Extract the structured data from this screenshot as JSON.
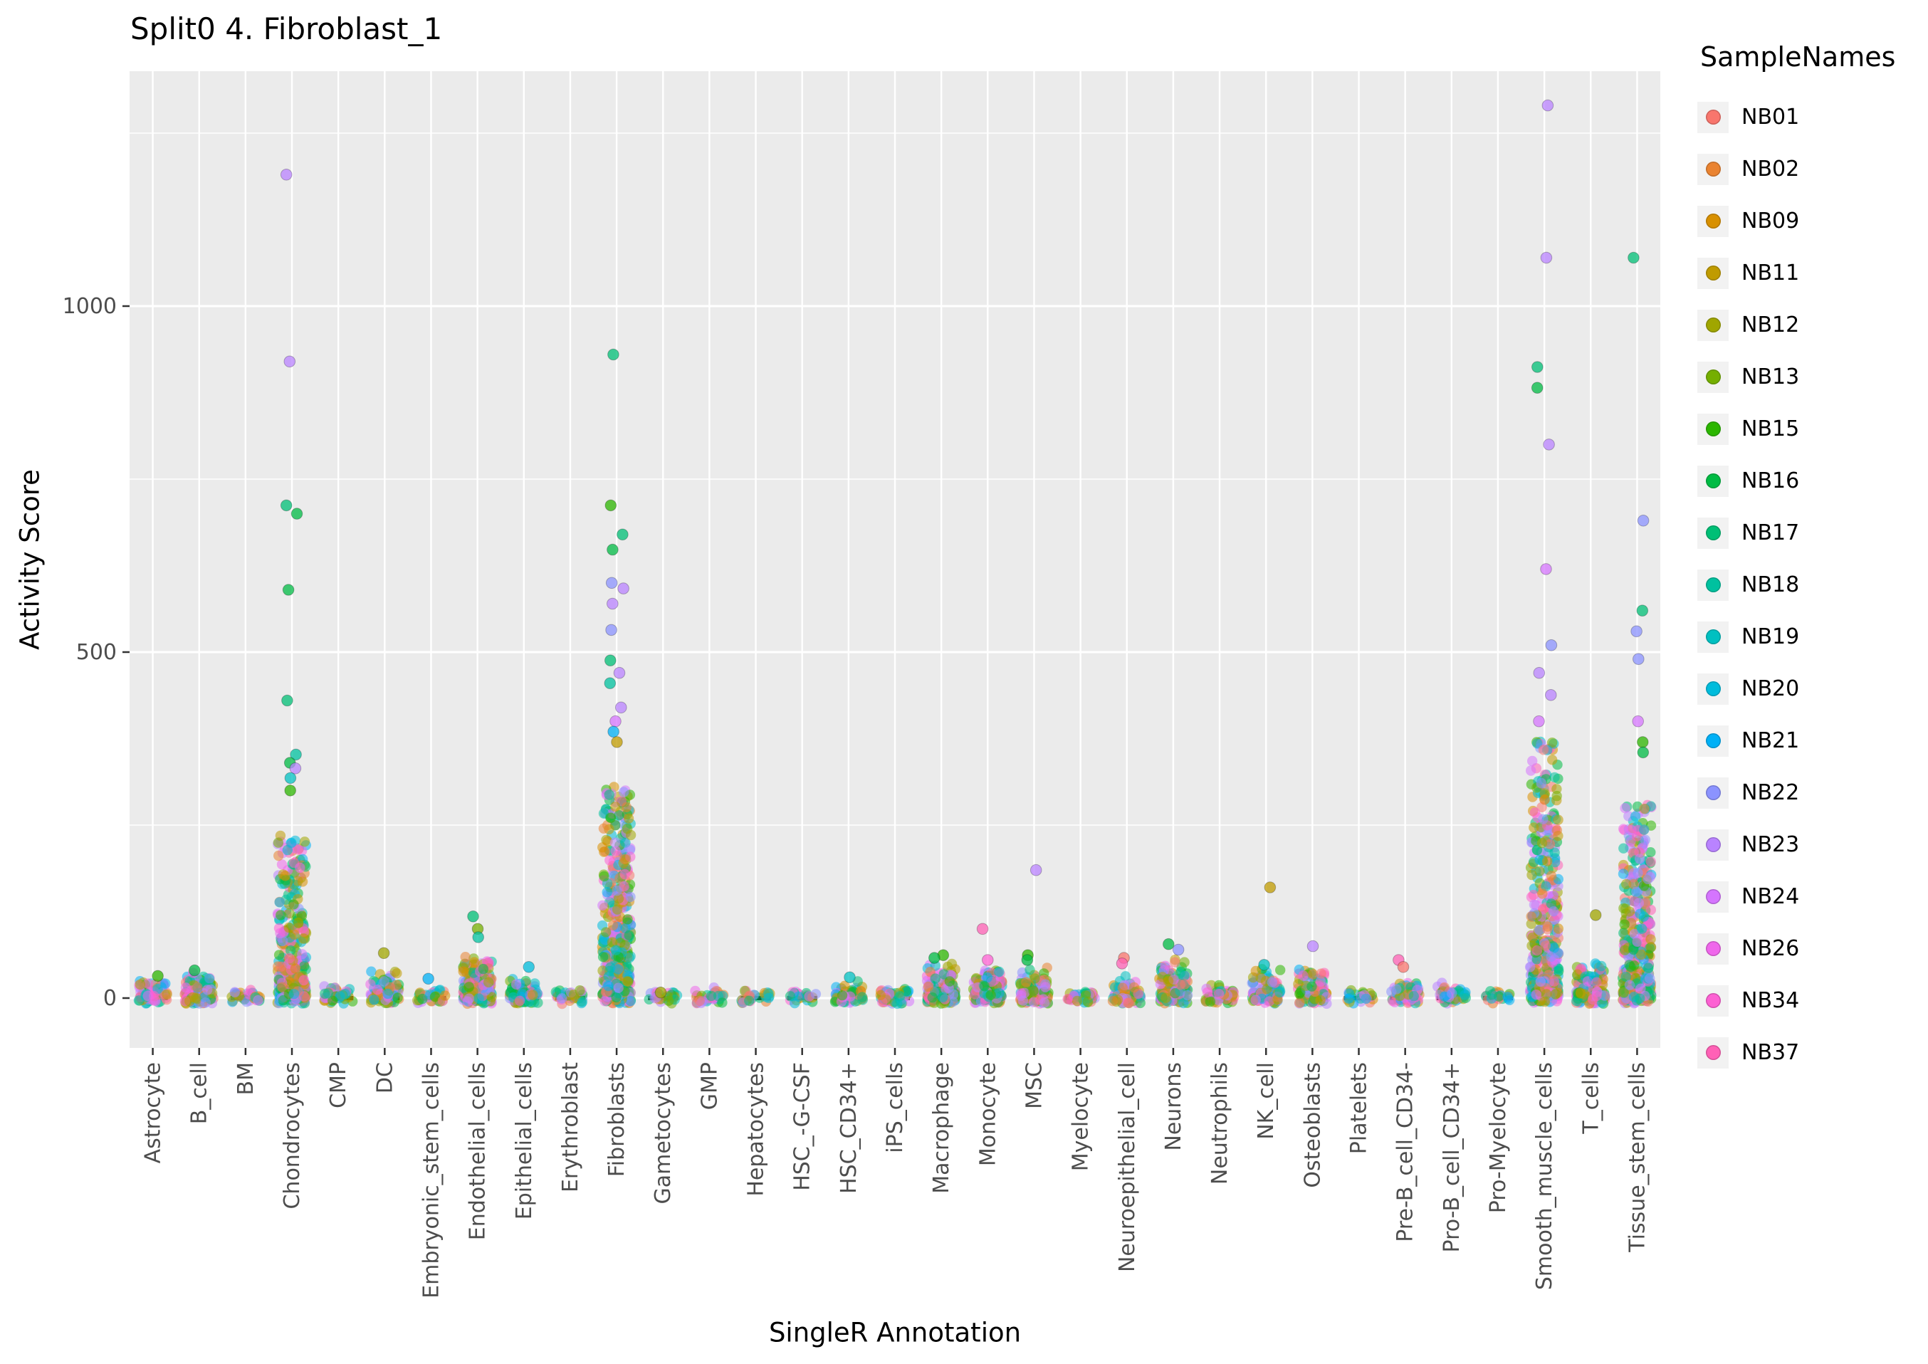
{
  "chart_data": {
    "type": "scatter",
    "title": "Split0 4. Fibroblast_1",
    "xlabel": "SingleR Annotation",
    "ylabel": "Activity Score",
    "ylim": [
      -70,
      1340
    ],
    "yticks": [
      0,
      500,
      1000
    ],
    "yticks_minor": [
      250,
      750,
      1250
    ],
    "grid": true,
    "legend_position": "right",
    "legend": {
      "title": "SampleNames",
      "entries": [
        {
          "name": "NB01",
          "color": "#F8766D"
        },
        {
          "name": "NB02",
          "color": "#EA8331"
        },
        {
          "name": "NB09",
          "color": "#D89000"
        },
        {
          "name": "NB11",
          "color": "#C09B00"
        },
        {
          "name": "NB12",
          "color": "#A0A600"
        },
        {
          "name": "NB13",
          "color": "#75AF00"
        },
        {
          "name": "NB15",
          "color": "#2CB600"
        },
        {
          "name": "NB16",
          "color": "#00BB44"
        },
        {
          "name": "NB17",
          "color": "#00BF76"
        },
        {
          "name": "NB18",
          "color": "#00C19F"
        },
        {
          "name": "NB19",
          "color": "#00C0C1"
        },
        {
          "name": "NB20",
          "color": "#00BCDC"
        },
        {
          "name": "NB21",
          "color": "#00B0F6"
        },
        {
          "name": "NB22",
          "color": "#8B93FF"
        },
        {
          "name": "NB23",
          "color": "#B983FF"
        },
        {
          "name": "NB24",
          "color": "#D575FE"
        },
        {
          "name": "NB26",
          "color": "#EF67EB"
        },
        {
          "name": "NB34",
          "color": "#FD61D3"
        },
        {
          "name": "NB37",
          "color": "#FF61B6"
        }
      ]
    },
    "categories": [
      "Astrocyte",
      "B_cell",
      "BM",
      "Chondrocytes",
      "CMP",
      "DC",
      "Embryonic_stem_cells",
      "Endothelial_cells",
      "Epithelial_cells",
      "Erythroblast",
      "Fibroblasts",
      "Gametocytes",
      "GMP",
      "Hepatocytes",
      "HSC_-G-CSF",
      "HSC_CD34+",
      "iPS_cells",
      "Macrophage",
      "Monocyte",
      "MSC",
      "Myelocyte",
      "Neuroepithelial_cell",
      "Neurons",
      "Neutrophils",
      "NK_cell",
      "Osteoblasts",
      "Platelets",
      "Pre-B_cell_CD34-",
      "Pro-B_cell_CD34+",
      "Pro-Myelocyte",
      "Smooth_muscle_cells",
      "T_cells",
      "Tissue_stem_cells"
    ],
    "clusters": [
      {
        "category": "Astrocyte",
        "n": 70,
        "bulk_max": 25,
        "power": 3,
        "outliers": [
          {
            "y": 32,
            "color": "#2CB600"
          }
        ]
      },
      {
        "category": "B_cell",
        "n": 160,
        "bulk_max": 30,
        "power": 3,
        "outliers": [
          {
            "y": 40,
            "color": "#00BB44"
          }
        ]
      },
      {
        "category": "BM",
        "n": 35,
        "bulk_max": 6,
        "power": 3,
        "outliers": []
      },
      {
        "category": "Chondrocytes",
        "n": 380,
        "bulk_max": 230,
        "power": 2.4,
        "outliers": [
          {
            "y": 1190,
            "color": "#B983FF"
          },
          {
            "y": 920,
            "color": "#B983FF"
          },
          {
            "y": 712,
            "color": "#00BF76"
          },
          {
            "y": 700,
            "color": "#00BB44"
          },
          {
            "y": 590,
            "color": "#00BB44"
          },
          {
            "y": 430,
            "color": "#00BF76"
          },
          {
            "y": 352,
            "color": "#00C19F"
          },
          {
            "y": 340,
            "color": "#00BB44"
          },
          {
            "y": 332,
            "color": "#B983FF"
          },
          {
            "y": 318,
            "color": "#00C0C1"
          },
          {
            "y": 300,
            "color": "#2CB600"
          }
        ]
      },
      {
        "category": "CMP",
        "n": 50,
        "bulk_max": 12,
        "power": 3,
        "outliers": []
      },
      {
        "category": "DC",
        "n": 90,
        "bulk_max": 35,
        "power": 3,
        "outliers": [
          {
            "y": 65,
            "color": "#A0A600"
          }
        ]
      },
      {
        "category": "Embryonic_stem_cells",
        "n": 30,
        "bulk_max": 8,
        "power": 3,
        "outliers": [
          {
            "y": 28,
            "color": "#00B0F6"
          }
        ]
      },
      {
        "category": "Endothelial_cells",
        "n": 220,
        "bulk_max": 55,
        "power": 2.8,
        "outliers": [
          {
            "y": 118,
            "color": "#00BF76"
          },
          {
            "y": 100,
            "color": "#75AF00"
          },
          {
            "y": 88,
            "color": "#00C19F"
          }
        ]
      },
      {
        "category": "Epithelial_cells",
        "n": 90,
        "bulk_max": 22,
        "power": 3,
        "outliers": [
          {
            "y": 45,
            "color": "#00BCDC"
          }
        ]
      },
      {
        "category": "Erythroblast",
        "n": 30,
        "bulk_max": 4,
        "power": 3,
        "outliers": []
      },
      {
        "category": "Fibroblasts",
        "n": 480,
        "bulk_max": 300,
        "power": 2.3,
        "outliers": [
          {
            "y": 930,
            "color": "#00BF76"
          },
          {
            "y": 712,
            "color": "#2CB600"
          },
          {
            "y": 670,
            "color": "#00BF76"
          },
          {
            "y": 648,
            "color": "#00BB44"
          },
          {
            "y": 600,
            "color": "#8B93FF"
          },
          {
            "y": 592,
            "color": "#B983FF"
          },
          {
            "y": 570,
            "color": "#B983FF"
          },
          {
            "y": 532,
            "color": "#8B93FF"
          },
          {
            "y": 488,
            "color": "#00BF76"
          },
          {
            "y": 470,
            "color": "#B983FF"
          },
          {
            "y": 455,
            "color": "#00C19F"
          },
          {
            "y": 420,
            "color": "#B983FF"
          },
          {
            "y": 400,
            "color": "#D575FE"
          },
          {
            "y": 385,
            "color": "#00B0F6"
          },
          {
            "y": 370,
            "color": "#C09B00"
          }
        ]
      },
      {
        "category": "Gametocytes",
        "n": 25,
        "bulk_max": 4,
        "power": 3,
        "outliers": [
          {
            "y": 8,
            "color": "#A0A600"
          }
        ]
      },
      {
        "category": "GMP",
        "n": 40,
        "bulk_max": 8,
        "power": 3,
        "outliers": []
      },
      {
        "category": "Hepatocytes",
        "n": 25,
        "bulk_max": 4,
        "power": 3,
        "outliers": []
      },
      {
        "category": "HSC_-G-CSF",
        "n": 25,
        "bulk_max": 3,
        "power": 3,
        "outliers": []
      },
      {
        "category": "HSC_CD34+",
        "n": 60,
        "bulk_max": 18,
        "power": 3,
        "outliers": [
          {
            "y": 30,
            "color": "#00C0C1"
          }
        ]
      },
      {
        "category": "iPS_cells",
        "n": 50,
        "bulk_max": 8,
        "power": 3,
        "outliers": []
      },
      {
        "category": "Macrophage",
        "n": 160,
        "bulk_max": 45,
        "power": 2.8,
        "outliers": [
          {
            "y": 62,
            "color": "#2CB600"
          },
          {
            "y": 58,
            "color": "#00BB44"
          }
        ]
      },
      {
        "category": "Monocyte",
        "n": 160,
        "bulk_max": 35,
        "power": 2.8,
        "outliers": [
          {
            "y": 100,
            "color": "#FF61B6"
          },
          {
            "y": 55,
            "color": "#FD61D3"
          }
        ]
      },
      {
        "category": "MSC",
        "n": 110,
        "bulk_max": 40,
        "power": 2.8,
        "outliers": [
          {
            "y": 185,
            "color": "#B983FF"
          },
          {
            "y": 62,
            "color": "#2CB600"
          },
          {
            "y": 55,
            "color": "#00BB44"
          }
        ]
      },
      {
        "category": "Myelocyte",
        "n": 40,
        "bulk_max": 6,
        "power": 3,
        "outliers": []
      },
      {
        "category": "Neuroepithelial_cell",
        "n": 70,
        "bulk_max": 25,
        "power": 3,
        "outliers": [
          {
            "y": 58,
            "color": "#F8766D"
          },
          {
            "y": 50,
            "color": "#FF61B6"
          }
        ]
      },
      {
        "category": "Neurons",
        "n": 130,
        "bulk_max": 55,
        "power": 2.6,
        "outliers": [
          {
            "y": 78,
            "color": "#00BB44"
          },
          {
            "y": 70,
            "color": "#8B93FF"
          }
        ]
      },
      {
        "category": "Neutrophils",
        "n": 60,
        "bulk_max": 14,
        "power": 3,
        "outliers": []
      },
      {
        "category": "NK_cell",
        "n": 110,
        "bulk_max": 35,
        "power": 2.8,
        "outliers": [
          {
            "y": 160,
            "color": "#C09B00"
          },
          {
            "y": 48,
            "color": "#00C0C1"
          }
        ]
      },
      {
        "category": "Osteoblasts",
        "n": 90,
        "bulk_max": 40,
        "power": 2.8,
        "outliers": [
          {
            "y": 75,
            "color": "#B983FF"
          }
        ]
      },
      {
        "category": "Platelets",
        "n": 25,
        "bulk_max": 4,
        "power": 3,
        "outliers": []
      },
      {
        "category": "Pre-B_cell_CD34-",
        "n": 70,
        "bulk_max": 20,
        "power": 3,
        "outliers": [
          {
            "y": 55,
            "color": "#FF61B6"
          },
          {
            "y": 45,
            "color": "#F8766D"
          }
        ]
      },
      {
        "category": "Pro-B_cell_CD34+",
        "n": 60,
        "bulk_max": 15,
        "power": 3,
        "outliers": []
      },
      {
        "category": "Pro-Myelocyte",
        "n": 25,
        "bulk_max": 4,
        "power": 3,
        "outliers": []
      },
      {
        "category": "Smooth_muscle_cells",
        "n": 420,
        "bulk_max": 380,
        "power": 2.2,
        "outliers": [
          {
            "y": 1290,
            "color": "#B983FF"
          },
          {
            "y": 1070,
            "color": "#B983FF"
          },
          {
            "y": 912,
            "color": "#00BF76"
          },
          {
            "y": 882,
            "color": "#00BB44"
          },
          {
            "y": 800,
            "color": "#B983FF"
          },
          {
            "y": 620,
            "color": "#D575FE"
          },
          {
            "y": 510,
            "color": "#8B93FF"
          },
          {
            "y": 470,
            "color": "#B983FF"
          },
          {
            "y": 438,
            "color": "#B983FF"
          },
          {
            "y": 400,
            "color": "#D575FE"
          }
        ]
      },
      {
        "category": "T_cells",
        "n": 150,
        "bulk_max": 45,
        "power": 2.8,
        "outliers": [
          {
            "y": 120,
            "color": "#A0A600"
          }
        ]
      },
      {
        "category": "Tissue_stem_cells",
        "n": 400,
        "bulk_max": 280,
        "power": 2.3,
        "outliers": [
          {
            "y": 1070,
            "color": "#00BF76"
          },
          {
            "y": 690,
            "color": "#8B93FF"
          },
          {
            "y": 560,
            "color": "#00BF76"
          },
          {
            "y": 530,
            "color": "#8B93FF"
          },
          {
            "y": 490,
            "color": "#8B93FF"
          },
          {
            "y": 400,
            "color": "#D575FE"
          },
          {
            "y": 370,
            "color": "#2CB600"
          },
          {
            "y": 355,
            "color": "#00BB44"
          }
        ]
      }
    ],
    "style": {
      "panel_bg": "#EBEBEB",
      "grid_color": "#FFFFFF",
      "tick_label_color": "#4D4D4D",
      "zero_dash_color": "#111111",
      "point_opacity": 0.55
    }
  }
}
